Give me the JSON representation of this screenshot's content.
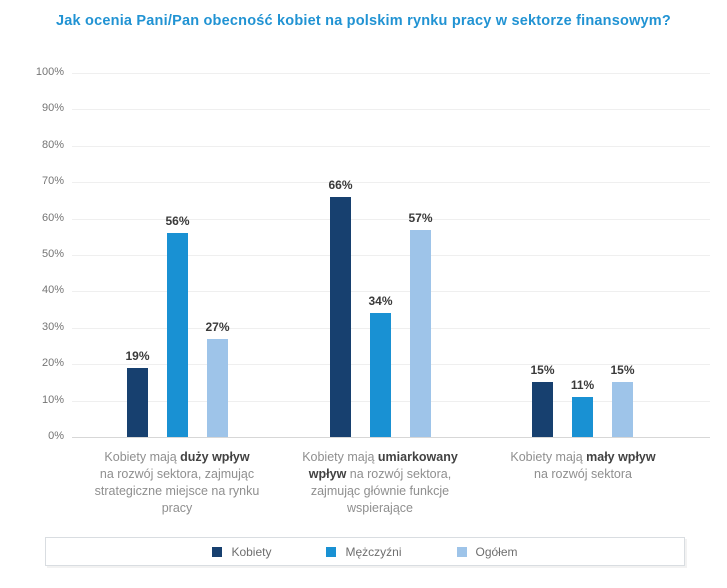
{
  "colors": {
    "title": "#2193D3",
    "kobiety": "#17406F",
    "mezczyzni": "#1991D3",
    "ogolem": "#9EC4E9",
    "gridline": "#EFEFEF",
    "value_label": "#3A3A3A",
    "category_text": "#8F8F8F",
    "category_bold": "#424242",
    "legend_border": "#D9DDE1"
  },
  "chart_data": {
    "type": "bar",
    "title": "Jak ocenia Pani/Pan obecność kobiet na polskim rynku pracy w sektorze finansowym?",
    "xlabel": "",
    "ylabel": "",
    "ylim": [
      0,
      100
    ],
    "ytick_step": 10,
    "ytick_labels": [
      "0%",
      "10%",
      "20%",
      "30%",
      "40%",
      "50%",
      "60%",
      "70%",
      "80%",
      "90%",
      "100%"
    ],
    "grid": true,
    "legend_position": "bottom",
    "value_suffix": "%",
    "categories": [
      {
        "parts": [
          {
            "text": "Kobiety mają ",
            "bold": false
          },
          {
            "text": "duży wpływ",
            "bold": true
          },
          {
            "text": "\nna rozwój sektora, zajmując\nstrategiczne miejsce na rynku\npracy",
            "bold": false
          }
        ]
      },
      {
        "parts": [
          {
            "text": "Kobiety mają ",
            "bold": false
          },
          {
            "text": "umiarkowany\nwpływ",
            "bold": true
          },
          {
            "text": " na rozwój sektora,\nzajmując głównie funkcje\nwspierające",
            "bold": false
          }
        ]
      },
      {
        "parts": [
          {
            "text": "Kobiety mają ",
            "bold": false
          },
          {
            "text": "mały wpływ",
            "bold": true
          },
          {
            "text": "\nna rozwój sektora",
            "bold": false
          }
        ]
      }
    ],
    "series": [
      {
        "name": "Kobiety",
        "key": "kobiety",
        "color": "#17406F",
        "values": [
          19,
          66,
          15
        ]
      },
      {
        "name": "Mężczyźni",
        "key": "mezczyzni",
        "color": "#1991D3",
        "values": [
          56,
          34,
          11
        ]
      },
      {
        "name": "Ogółem",
        "key": "ogolem",
        "color": "#9EC4E9",
        "values": [
          27,
          57,
          15
        ]
      }
    ]
  }
}
